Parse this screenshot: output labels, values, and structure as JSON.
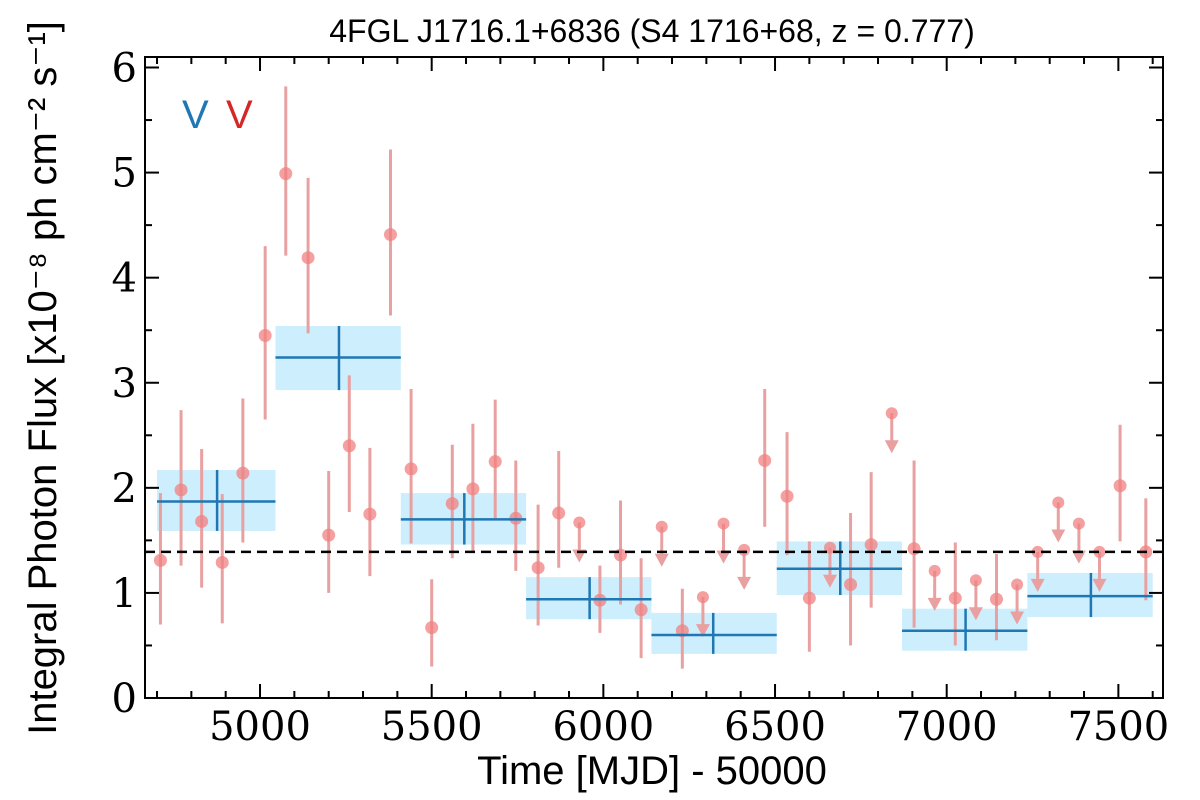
{
  "chart_data": {
    "type": "scatter",
    "title": "4FGL J1716.1+6836 (S4 1716+68, z = 0.777)",
    "xlabel": "Time [MJD] - 50000",
    "ylabel": "Integral Photon Flux [x10⁻⁸ ph cm⁻² s⁻¹]",
    "xlim": [
      4665,
      7630
    ],
    "ylim": [
      0,
      6.1
    ],
    "x_ticks": [
      5000,
      5500,
      6000,
      6500,
      7000,
      7500
    ],
    "x_tick_labels": [
      "5000",
      "5500",
      "6000",
      "6500",
      "7000",
      "7500"
    ],
    "y_ticks": [
      0,
      1,
      2,
      3,
      4,
      5,
      6
    ],
    "y_tick_labels": [
      "0",
      "1",
      "2",
      "3",
      "4",
      "5",
      "6"
    ],
    "reference_line": {
      "y": 1.39,
      "style": "dashed",
      "color": "#000000"
    },
    "markers": [
      {
        "text": "V",
        "color": "#1f77b4"
      },
      {
        "text": "V",
        "color": "#d62728"
      }
    ],
    "colors": {
      "points": "#f08080",
      "points_err": "#e9a0a0",
      "bins": "#1f77b4",
      "bin_band": "#cdeefc"
    },
    "binned": [
      {
        "x_start": 4700,
        "x_end": 5045,
        "x": 4875,
        "y": 1.87,
        "ylo": 1.59,
        "yhi": 2.17
      },
      {
        "x_start": 5045,
        "x_end": 5410,
        "x": 5230,
        "y": 3.24,
        "ylo": 2.93,
        "yhi": 3.54
      },
      {
        "x_start": 5410,
        "x_end": 5775,
        "x": 5595,
        "y": 1.7,
        "ylo": 1.46,
        "yhi": 1.95
      },
      {
        "x_start": 5775,
        "x_end": 6140,
        "x": 5960,
        "y": 0.94,
        "ylo": 0.75,
        "yhi": 1.15
      },
      {
        "x_start": 6140,
        "x_end": 6505,
        "x": 6320,
        "y": 0.6,
        "ylo": 0.42,
        "yhi": 0.81
      },
      {
        "x_start": 6505,
        "x_end": 6870,
        "x": 6690,
        "y": 1.23,
        "ylo": 0.98,
        "yhi": 1.49
      },
      {
        "x_start": 6870,
        "x_end": 7235,
        "x": 7055,
        "y": 0.64,
        "ylo": 0.45,
        "yhi": 0.85
      },
      {
        "x_start": 7235,
        "x_end": 7600,
        "x": 7420,
        "y": 0.97,
        "ylo": 0.77,
        "yhi": 1.19
      }
    ],
    "points": [
      {
        "x": 4710,
        "y": 1.31,
        "ylo": 0.7,
        "yhi": 1.95
      },
      {
        "x": 4770,
        "y": 1.98,
        "ylo": 1.26,
        "yhi": 2.74
      },
      {
        "x": 4830,
        "y": 1.68,
        "ylo": 1.05,
        "yhi": 2.37
      },
      {
        "x": 4890,
        "y": 1.29,
        "ylo": 0.71,
        "yhi": 1.94
      },
      {
        "x": 4950,
        "y": 2.14,
        "ylo": 1.48,
        "yhi": 2.85
      },
      {
        "x": 5015,
        "y": 3.45,
        "ylo": 2.65,
        "yhi": 4.3
      },
      {
        "x": 5075,
        "y": 4.99,
        "ylo": 4.21,
        "yhi": 5.82
      },
      {
        "x": 5140,
        "y": 4.19,
        "ylo": 3.47,
        "yhi": 4.95
      },
      {
        "x": 5200,
        "y": 1.55,
        "ylo": 1.0,
        "yhi": 2.16
      },
      {
        "x": 5260,
        "y": 2.4,
        "ylo": 1.77,
        "yhi": 3.07
      },
      {
        "x": 5320,
        "y": 1.75,
        "ylo": 1.16,
        "yhi": 2.38
      },
      {
        "x": 5380,
        "y": 4.41,
        "ylo": 3.64,
        "yhi": 5.22
      },
      {
        "x": 5440,
        "y": 2.18,
        "ylo": 1.47,
        "yhi": 2.94
      },
      {
        "x": 5500,
        "y": 0.67,
        "ylo": 0.3,
        "yhi": 1.13
      },
      {
        "x": 5560,
        "y": 1.85,
        "ylo": 1.33,
        "yhi": 2.41
      },
      {
        "x": 5620,
        "y": 1.99,
        "ylo": 1.4,
        "yhi": 2.61
      },
      {
        "x": 5685,
        "y": 2.25,
        "ylo": 1.71,
        "yhi": 2.84
      },
      {
        "x": 5745,
        "y": 1.71,
        "ylo": 1.21,
        "yhi": 2.26
      },
      {
        "x": 5810,
        "y": 1.24,
        "ylo": 0.69,
        "yhi": 1.84
      },
      {
        "x": 5870,
        "y": 1.76,
        "ylo": 1.24,
        "yhi": 2.35
      },
      {
        "x": 5990,
        "y": 0.93,
        "ylo": 0.62,
        "yhi": 1.26
      },
      {
        "x": 6050,
        "y": 1.36,
        "ylo": 0.89,
        "yhi": 1.88
      },
      {
        "x": 6110,
        "y": 0.84,
        "ylo": 0.38,
        "yhi": 1.33
      },
      {
        "x": 6230,
        "y": 0.64,
        "ylo": 0.28,
        "yhi": 1.04
      },
      {
        "x": 6470,
        "y": 2.26,
        "ylo": 1.63,
        "yhi": 2.94
      },
      {
        "x": 6535,
        "y": 1.92,
        "ylo": 1.36,
        "yhi": 2.53
      },
      {
        "x": 6600,
        "y": 0.95,
        "ylo": 0.44,
        "yhi": 1.49
      },
      {
        "x": 6720,
        "y": 1.08,
        "ylo": 0.5,
        "yhi": 1.76
      },
      {
        "x": 6780,
        "y": 1.46,
        "ylo": 0.86,
        "yhi": 2.15
      },
      {
        "x": 6905,
        "y": 1.42,
        "ylo": 0.67,
        "yhi": 2.26
      },
      {
        "x": 7025,
        "y": 0.95,
        "ylo": 0.5,
        "yhi": 1.48
      },
      {
        "x": 7145,
        "y": 0.94,
        "ylo": 0.55,
        "yhi": 1.37
      },
      {
        "x": 7505,
        "y": 2.02,
        "ylo": 1.49,
        "yhi": 2.6
      },
      {
        "x": 7580,
        "y": 1.39,
        "ylo": 0.93,
        "yhi": 1.9
      }
    ],
    "upper_limits": [
      {
        "x": 5930,
        "y": 1.67
      },
      {
        "x": 6170,
        "y": 1.63
      },
      {
        "x": 6290,
        "y": 0.96
      },
      {
        "x": 6350,
        "y": 1.66
      },
      {
        "x": 6410,
        "y": 1.41
      },
      {
        "x": 6660,
        "y": 1.43
      },
      {
        "x": 6840,
        "y": 2.71
      },
      {
        "x": 6965,
        "y": 1.21
      },
      {
        "x": 7085,
        "y": 1.12
      },
      {
        "x": 7205,
        "y": 1.08
      },
      {
        "x": 7265,
        "y": 1.39
      },
      {
        "x": 7325,
        "y": 1.86
      },
      {
        "x": 7385,
        "y": 1.66
      },
      {
        "x": 7445,
        "y": 1.39
      }
    ]
  }
}
